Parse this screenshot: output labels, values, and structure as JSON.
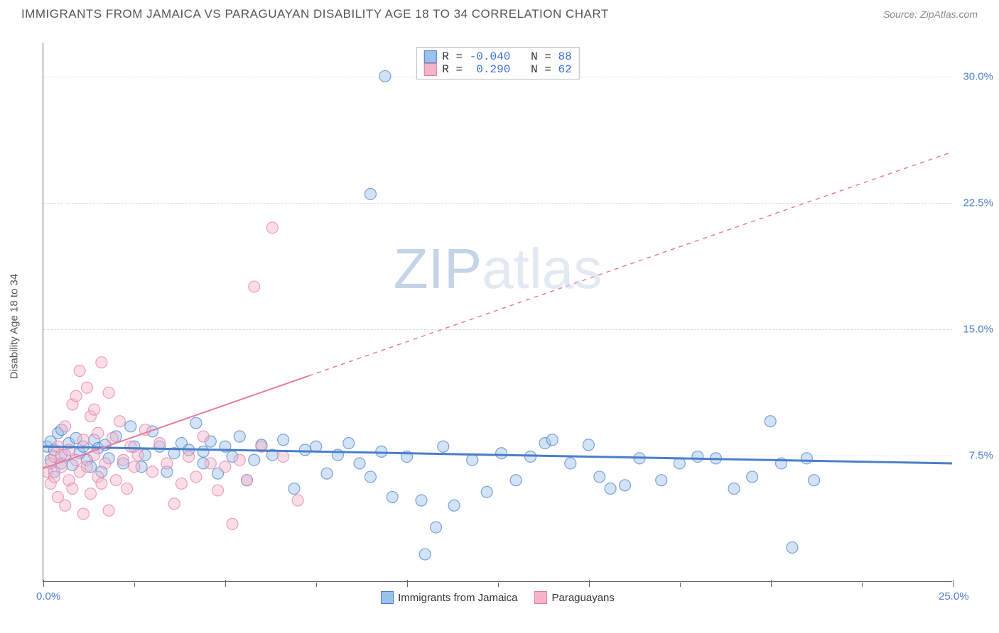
{
  "title": "IMMIGRANTS FROM JAMAICA VS PARAGUAYAN DISABILITY AGE 18 TO 34 CORRELATION CHART",
  "source_label": "Source: ZipAtlas.com",
  "ylabel": "Disability Age 18 to 34",
  "watermark": {
    "z": "ZIP",
    "a": "atlas"
  },
  "chart": {
    "type": "scatter",
    "background_color": "#ffffff",
    "grid_color": "#dddddd",
    "axis_color": "#666666",
    "xlim": [
      0,
      25
    ],
    "ylim": [
      0,
      32
    ],
    "yticks": [
      {
        "v": 7.5,
        "label": "7.5%"
      },
      {
        "v": 15.0,
        "label": "15.0%"
      },
      {
        "v": 22.5,
        "label": "22.5%"
      },
      {
        "v": 30.0,
        "label": "30.0%"
      }
    ],
    "xticks_major": [
      0,
      5,
      10,
      15,
      20,
      25
    ],
    "xticks_minor": [
      2.5,
      7.5,
      12.5,
      17.5,
      22.5
    ],
    "xlabel_left": {
      "v": 0,
      "text": "0.0%"
    },
    "xlabel_right": {
      "v": 25,
      "text": "25.0%"
    },
    "marker_radius": 8,
    "series": {
      "jamaica": {
        "label": "Immigrants from Jamaica",
        "fill": "#9cc1eb",
        "stroke": "#4a7ec9",
        "r_value": "-0.040",
        "n_value": "88",
        "trend": {
          "solid": [
            [
              0,
              8.0
            ],
            [
              25,
              7.0
            ]
          ],
          "dash": null,
          "width": 3
        },
        "points": [
          [
            0.1,
            8.0
          ],
          [
            0.2,
            7.2
          ],
          [
            0.2,
            8.3
          ],
          [
            0.3,
            7.8
          ],
          [
            0.3,
            6.5
          ],
          [
            0.4,
            8.8
          ],
          [
            0.5,
            7.0
          ],
          [
            0.5,
            9.0
          ],
          [
            0.6,
            7.5
          ],
          [
            0.7,
            8.2
          ],
          [
            0.8,
            6.9
          ],
          [
            0.9,
            8.5
          ],
          [
            1.0,
            7.6
          ],
          [
            1.1,
            8.0
          ],
          [
            1.2,
            7.2
          ],
          [
            1.3,
            6.8
          ],
          [
            1.4,
            8.4
          ],
          [
            1.5,
            7.9
          ],
          [
            1.6,
            6.5
          ],
          [
            1.7,
            8.1
          ],
          [
            1.8,
            7.3
          ],
          [
            2.0,
            8.6
          ],
          [
            2.2,
            7.0
          ],
          [
            2.4,
            9.2
          ],
          [
            2.5,
            8.0
          ],
          [
            2.7,
            6.8
          ],
          [
            2.8,
            7.5
          ],
          [
            3.0,
            8.9
          ],
          [
            3.2,
            8.0
          ],
          [
            3.4,
            6.5
          ],
          [
            3.6,
            7.6
          ],
          [
            3.8,
            8.2
          ],
          [
            4.0,
            7.8
          ],
          [
            4.2,
            9.4
          ],
          [
            4.4,
            7.7
          ],
          [
            4.6,
            8.3
          ],
          [
            4.8,
            6.4
          ],
          [
            5.0,
            8.0
          ],
          [
            5.2,
            7.4
          ],
          [
            5.4,
            8.6
          ],
          [
            5.6,
            6.0
          ],
          [
            5.8,
            7.2
          ],
          [
            6.0,
            8.1
          ],
          [
            6.3,
            7.5
          ],
          [
            6.6,
            8.4
          ],
          [
            6.9,
            5.5
          ],
          [
            7.2,
            7.8
          ],
          [
            7.5,
            8.0
          ],
          [
            7.8,
            6.4
          ],
          [
            8.1,
            7.5
          ],
          [
            8.4,
            8.2
          ],
          [
            8.7,
            7.0
          ],
          [
            9.0,
            6.2
          ],
          [
            9.3,
            7.7
          ],
          [
            9.0,
            23.0
          ],
          [
            9.6,
            5.0
          ],
          [
            10.0,
            7.4
          ],
          [
            10.4,
            4.8
          ],
          [
            10.5,
            1.6
          ],
          [
            10.8,
            3.2
          ],
          [
            11.0,
            8.0
          ],
          [
            11.3,
            4.5
          ],
          [
            11.8,
            7.2
          ],
          [
            12.2,
            5.3
          ],
          [
            12.6,
            7.6
          ],
          [
            13.0,
            6.0
          ],
          [
            13.4,
            7.4
          ],
          [
            13.8,
            8.2
          ],
          [
            14.0,
            8.4
          ],
          [
            14.5,
            7.0
          ],
          [
            15.0,
            8.1
          ],
          [
            15.3,
            6.2
          ],
          [
            15.6,
            5.5
          ],
          [
            16.0,
            5.7
          ],
          [
            16.4,
            7.3
          ],
          [
            17.0,
            6.0
          ],
          [
            17.5,
            7.0
          ],
          [
            18.0,
            7.4
          ],
          [
            18.5,
            7.3
          ],
          [
            19.0,
            5.5
          ],
          [
            19.5,
            6.2
          ],
          [
            20.0,
            9.5
          ],
          [
            20.3,
            7.0
          ],
          [
            20.6,
            2.0
          ],
          [
            21.0,
            7.3
          ],
          [
            21.2,
            6.0
          ],
          [
            9.4,
            30.0
          ],
          [
            4.4,
            7.0
          ]
        ]
      },
      "paraguay": {
        "label": "Paraguayans",
        "fill": "#f5b5c9",
        "stroke": "#e87aa0",
        "r_value": " 0.290",
        "n_value": "62",
        "trend": {
          "solid": [
            [
              0,
              6.7
            ],
            [
              7.3,
              12.2
            ]
          ],
          "dash": [
            [
              7.3,
              12.2
            ],
            [
              25,
              25.5
            ]
          ],
          "width": 2
        },
        "points": [
          [
            0.1,
            6.5
          ],
          [
            0.2,
            7.0
          ],
          [
            0.2,
            5.8
          ],
          [
            0.3,
            7.4
          ],
          [
            0.3,
            6.2
          ],
          [
            0.4,
            8.0
          ],
          [
            0.4,
            5.0
          ],
          [
            0.5,
            6.8
          ],
          [
            0.5,
            7.5
          ],
          [
            0.6,
            4.5
          ],
          [
            0.6,
            9.2
          ],
          [
            0.7,
            6.0
          ],
          [
            0.7,
            7.8
          ],
          [
            0.8,
            10.5
          ],
          [
            0.8,
            5.5
          ],
          [
            0.9,
            7.2
          ],
          [
            0.9,
            11.0
          ],
          [
            1.0,
            6.5
          ],
          [
            1.0,
            12.5
          ],
          [
            1.1,
            8.4
          ],
          [
            1.1,
            4.0
          ],
          [
            1.2,
            11.5
          ],
          [
            1.2,
            6.8
          ],
          [
            1.3,
            9.8
          ],
          [
            1.3,
            5.2
          ],
          [
            1.4,
            7.5
          ],
          [
            1.4,
            10.2
          ],
          [
            1.5,
            6.2
          ],
          [
            1.5,
            8.8
          ],
          [
            1.6,
            13.0
          ],
          [
            1.6,
            5.8
          ],
          [
            1.7,
            7.0
          ],
          [
            1.8,
            11.2
          ],
          [
            1.8,
            4.2
          ],
          [
            1.9,
            8.5
          ],
          [
            2.0,
            6.0
          ],
          [
            2.1,
            9.5
          ],
          [
            2.2,
            7.2
          ],
          [
            2.3,
            5.5
          ],
          [
            2.4,
            8.0
          ],
          [
            2.5,
            6.8
          ],
          [
            2.6,
            7.5
          ],
          [
            2.8,
            9.0
          ],
          [
            3.0,
            6.5
          ],
          [
            3.2,
            8.2
          ],
          [
            3.4,
            7.0
          ],
          [
            3.6,
            4.6
          ],
          [
            3.8,
            5.8
          ],
          [
            4.0,
            7.4
          ],
          [
            4.2,
            6.2
          ],
          [
            4.4,
            8.6
          ],
          [
            4.6,
            7.0
          ],
          [
            4.8,
            5.4
          ],
          [
            5.0,
            6.8
          ],
          [
            5.2,
            3.4
          ],
          [
            5.4,
            7.2
          ],
          [
            5.6,
            6.0
          ],
          [
            5.8,
            17.5
          ],
          [
            6.0,
            8.0
          ],
          [
            6.3,
            21.0
          ],
          [
            6.6,
            7.4
          ],
          [
            7.0,
            4.8
          ]
        ]
      }
    },
    "top_legend_order": [
      "jamaica",
      "paraguay"
    ]
  },
  "r_label": "R =",
  "n_label": "N ="
}
